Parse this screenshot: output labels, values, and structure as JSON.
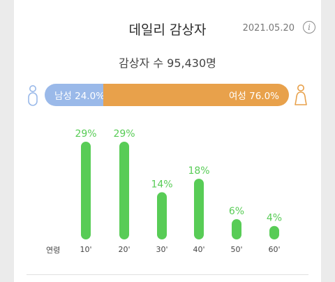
{
  "header": {
    "title": "데일리 감상자",
    "date": "2021.05.20",
    "info_icon": "info-icon"
  },
  "total_text": "감상자 수 95,430명",
  "gender": {
    "male_label": "남성 24.0%",
    "female_label": "여성 76.0%",
    "male_share": 24.0,
    "female_share": 76.0,
    "male_color": "#9ab9e9",
    "female_color": "#e8a14b",
    "male_icon": "male-person-icon",
    "female_icon": "female-person-icon"
  },
  "chart_data": {
    "type": "bar",
    "xlabel": "연령",
    "categories": [
      "10'",
      "20'",
      "30'",
      "40'",
      "50'",
      "60'"
    ],
    "values": [
      29,
      29,
      14,
      18,
      6,
      4
    ],
    "labels": [
      "29%",
      "29%",
      "14%",
      "18%",
      "6%",
      "4%"
    ],
    "unit": "%",
    "color": "#58cc56"
  }
}
